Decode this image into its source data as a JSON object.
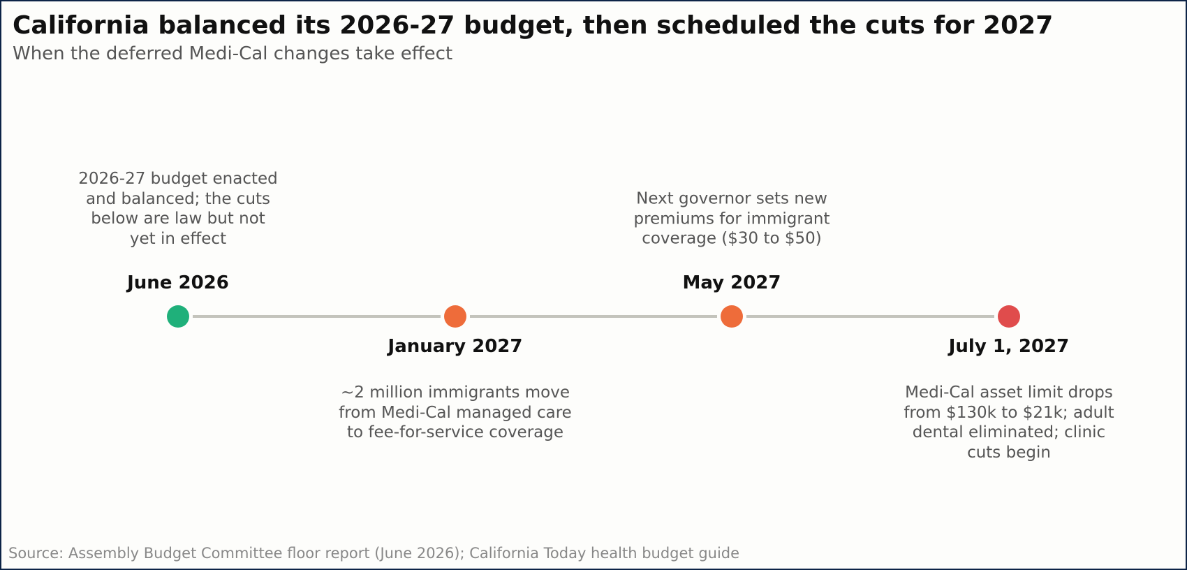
{
  "title": "California balanced its 2026-27 budget, then scheduled the cuts for 2027",
  "subtitle": "When the deferred Medi-Cal changes take effect",
  "source": "Source: Assembly Budget Committee floor report (June 2026); California Today health budget guide",
  "timeline": {
    "events": [
      {
        "date": "June 2026",
        "description": "2026-27 budget enacted\nand balanced; the cuts\nbelow are law but not\nyet in effect",
        "position": "above",
        "color": "#1fb07a"
      },
      {
        "date": "January 2027",
        "description": "~2 million immigrants move\nfrom Medi-Cal managed care\nto fee-for-service coverage",
        "position": "below",
        "color": "#ee6c3a"
      },
      {
        "date": "May 2027",
        "description": "Next governor sets new\npremiums for immigrant\ncoverage ($30 to $50)",
        "position": "above",
        "color": "#ee6c3a"
      },
      {
        "date": "July 1, 2027",
        "description": "Medi-Cal asset limit drops\nfrom $130k to $21k; adult\ndental eliminated; clinic\ncuts begin",
        "position": "below",
        "color": "#e04c4c"
      }
    ],
    "line_color": "#c4c4bc"
  }
}
